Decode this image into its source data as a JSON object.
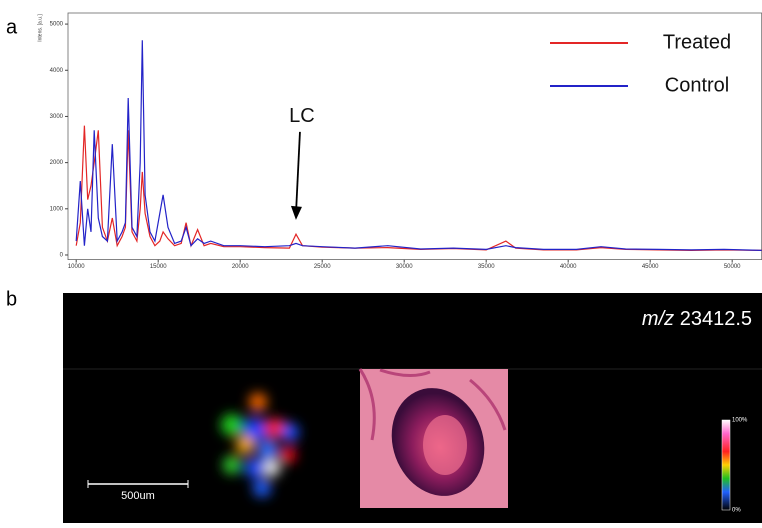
{
  "chart_data": {
    "type": "line",
    "annotations": [
      {
        "text": "LC",
        "x": 23400,
        "y": 760
      }
    ],
    "x": [
      10000,
      10250,
      10500,
      10700,
      10900,
      11100,
      11350,
      11600,
      11900,
      12200,
      12500,
      12800,
      13000,
      13170,
      13400,
      13700,
      13900,
      14030,
      14200,
      14500,
      14800,
      15100,
      15300,
      15600,
      16000,
      16400,
      16700,
      17000,
      17400,
      17800,
      18200,
      19000,
      20000,
      21500,
      23000,
      23400,
      23800,
      25000,
      27000,
      29000,
      31000,
      33000,
      35000,
      36200,
      36800,
      38500,
      40500,
      42000,
      43500,
      45500,
      47500,
      49500,
      51800
    ],
    "series": [
      {
        "name": "Treated",
        "color": "#e32626",
        "values": [
          200,
          700,
          2800,
          1200,
          1500,
          2000,
          2700,
          600,
          300,
          800,
          200,
          400,
          600,
          2700,
          500,
          300,
          1000,
          1800,
          900,
          400,
          200,
          300,
          500,
          350,
          200,
          250,
          700,
          200,
          550,
          200,
          250,
          180,
          180,
          160,
          150,
          450,
          200,
          170,
          150,
          160,
          120,
          140,
          110,
          300,
          150,
          110,
          110,
          160,
          120,
          110,
          100,
          110,
          100
        ]
      },
      {
        "name": "Control",
        "color": "#2323c8",
        "values": [
          300,
          1600,
          200,
          1000,
          500,
          2700,
          800,
          400,
          300,
          2400,
          300,
          500,
          700,
          3400,
          600,
          400,
          2000,
          4650,
          1300,
          500,
          300,
          900,
          1300,
          600,
          250,
          300,
          600,
          200,
          350,
          250,
          300,
          200,
          200,
          180,
          200,
          250,
          200,
          180,
          150,
          200,
          130,
          150,
          120,
          200,
          160,
          120,
          120,
          180,
          130,
          120,
          110,
          120,
          100
        ]
      }
    ],
    "xlim": [
      9500,
      51800
    ],
    "ylim": [
      -100,
      5240
    ],
    "xticks": [
      10000,
      15000,
      20000,
      25000,
      30000,
      35000,
      40000,
      45000,
      50000
    ],
    "yticks": [
      0,
      1000,
      2000,
      3000,
      4000,
      5000
    ],
    "ylabel": "Intens. [a.u.]",
    "legend": "upper right"
  },
  "panel_labels": [
    "a",
    "b"
  ],
  "image_panel": {
    "title_prefix": "m/z",
    "title_value": "23412.5",
    "scale_bar": "500um",
    "colorbar_max": "100%",
    "colorbar_min": "0%"
  }
}
